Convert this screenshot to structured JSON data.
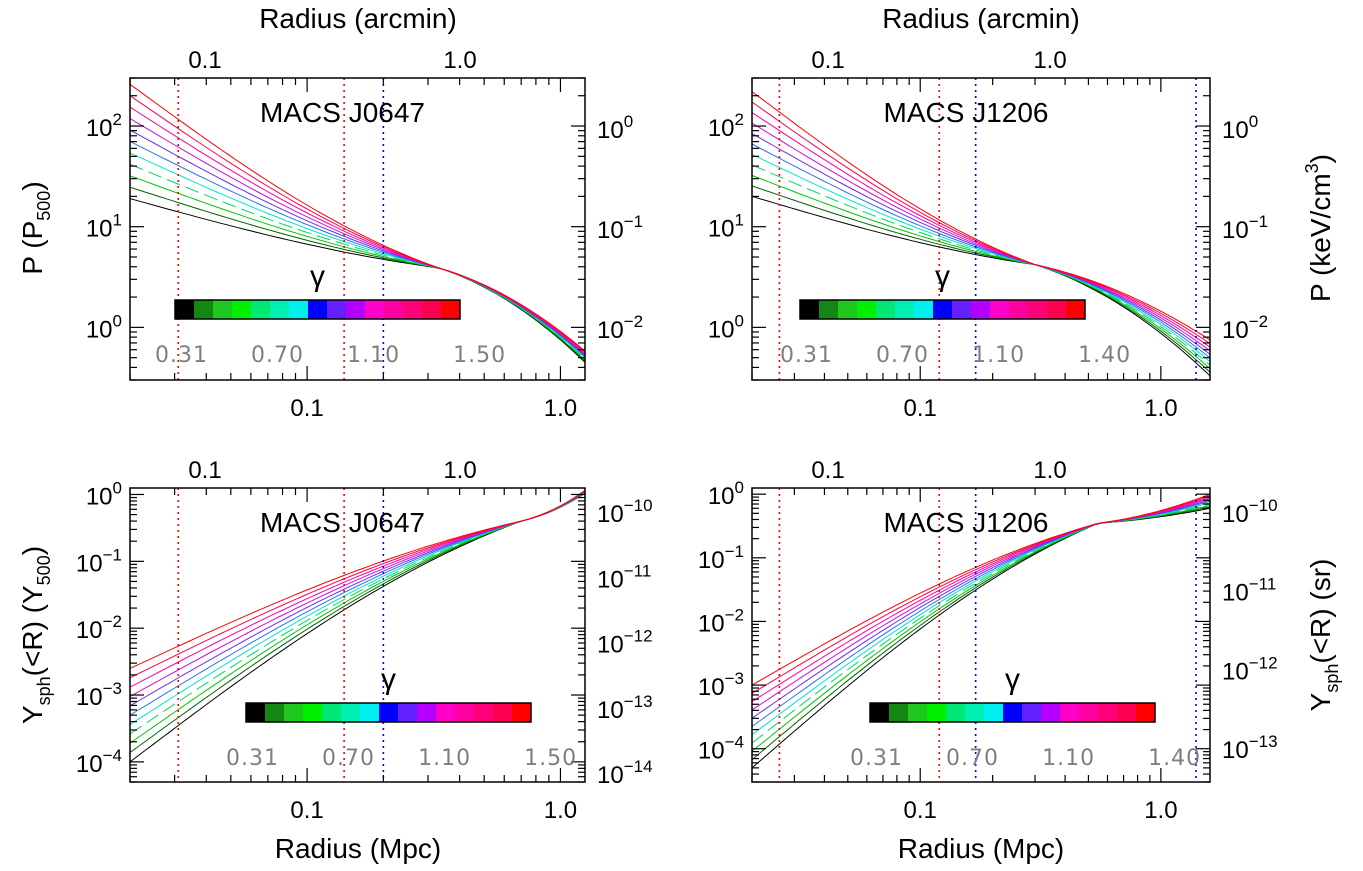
{
  "figure": {
    "top_axis_label": "Radius (arcmin)",
    "bottom_axis_label": "Radius (Mpc)",
    "pressure_left_label": "P (P500)",
    "pressure_right_label": "P (keV/cm3)",
    "ysph_left_label": "Ysph(<R) (Y500)",
    "ysph_right_label": "Ysph(<R) (sr)",
    "colorbar_symbol": "γ",
    "colorbar_colors": [
      "#000000",
      "#138613",
      "#1fc81f",
      "#00f000",
      "#00e873",
      "#00f0b4",
      "#00f0f0",
      "#0000ff",
      "#6420ff",
      "#b400ff",
      "#ff00c8",
      "#ff00a0",
      "#ff0078",
      "#ff0050",
      "#ff0000"
    ]
  },
  "chart_data": [
    {
      "type": "line",
      "title": "MACS J0647",
      "panel": "pressure",
      "xlim": [
        0.02,
        1.25
      ],
      "x_top_ticks": [
        "0.1",
        "1.0"
      ],
      "x_bottom_ticks": [
        "0.1",
        "1.0"
      ],
      "y_left_ticks": [
        "10^0",
        "10^1",
        "10^2"
      ],
      "y_right_ticks": [
        "10^-2",
        "10^-1",
        "10^0"
      ],
      "ylim": [
        0.3,
        300
      ],
      "gamma_labels": [
        "0.31",
        "0.70",
        "1.10",
        "1.50"
      ],
      "gamma_min": 0.31,
      "gamma_max": 1.5,
      "n_curves": 11,
      "pivot_x": 0.33,
      "pivot_y": 3.9,
      "y_at_left_min": 19,
      "y_at_left_max": 260,
      "y_at_right_min": 0.45,
      "y_at_right_max": 0.58,
      "vlines": [
        {
          "x": 0.031,
          "color": "red"
        },
        {
          "x": 0.14,
          "color": "red"
        },
        {
          "x": 0.2,
          "color": "blue"
        }
      ]
    },
    {
      "type": "line",
      "title": "MACS J1206",
      "panel": "pressure",
      "xlim": [
        0.02,
        1.6
      ],
      "x_top_ticks": [
        "0.1",
        "1.0"
      ],
      "x_bottom_ticks": [
        "0.1",
        "1.0"
      ],
      "y_left_ticks": [
        "10^0",
        "10^1",
        "10^2"
      ],
      "y_right_ticks": [
        "10^-2",
        "10^-1",
        "10^0"
      ],
      "ylim": [
        0.3,
        300
      ],
      "gamma_labels": [
        "0.31",
        "0.70",
        "1.10",
        "1.40"
      ],
      "gamma_min": 0.31,
      "gamma_max": 1.4,
      "n_curves": 11,
      "pivot_x": 0.3,
      "pivot_y": 4.2,
      "y_at_left_min": 20,
      "y_at_left_max": 220,
      "y_at_right_min": 0.33,
      "y_at_right_max": 0.75,
      "vlines": [
        {
          "x": 0.026,
          "color": "red"
        },
        {
          "x": 0.12,
          "color": "red"
        },
        {
          "x": 0.17,
          "color": "blue"
        },
        {
          "x": 1.4,
          "color": "blue"
        }
      ]
    },
    {
      "type": "line",
      "title": "MACS J0647",
      "panel": "ysph",
      "xlim": [
        0.02,
        1.25
      ],
      "x_top_ticks": [
        "0.1",
        "1.0"
      ],
      "x_bottom_ticks": [
        "0.1",
        "1.0"
      ],
      "y_left_ticks": [
        "10^-4",
        "10^-3",
        "10^-2",
        "10^-1",
        "10^0"
      ],
      "y_right_ticks": [
        "10^-14",
        "10^-13",
        "10^-12",
        "10^-11",
        "10^-10"
      ],
      "ylim": [
        5e-05,
        1.25
      ],
      "gamma_labels": [
        "0.31",
        "0.70",
        "1.10",
        "1.50"
      ],
      "gamma_min": 0.31,
      "gamma_max": 1.5,
      "n_curves": 11,
      "pivot_x": 0.7,
      "pivot_y": 0.4,
      "y_at_left_min": 0.0001,
      "y_at_left_max": 0.0025,
      "y_at_right_min": 1.05,
      "y_at_right_max": 1.15,
      "vlines": [
        {
          "x": 0.031,
          "color": "red"
        },
        {
          "x": 0.14,
          "color": "red"
        },
        {
          "x": 0.2,
          "color": "blue"
        }
      ]
    },
    {
      "type": "line",
      "title": "MACS J1206",
      "panel": "ysph",
      "xlim": [
        0.02,
        1.6
      ],
      "x_top_ticks": [
        "0.1",
        "1.0"
      ],
      "x_bottom_ticks": [
        "0.1",
        "1.0"
      ],
      "y_left_ticks": [
        "10^-4",
        "10^-3",
        "10^-2",
        "10^-1",
        "10^0"
      ],
      "y_right_ticks": [
        "10^-13",
        "10^-12",
        "10^-11",
        "10^-10"
      ],
      "ylim": [
        3e-05,
        1.25
      ],
      "gamma_labels": [
        "0.31",
        "0.70",
        "1.10",
        "1.40"
      ],
      "gamma_min": 0.31,
      "gamma_max": 1.4,
      "n_curves": 11,
      "pivot_x": 0.55,
      "pivot_y": 0.35,
      "y_at_left_min": 5e-05,
      "y_at_left_max": 0.001,
      "y_at_right_min": 0.6,
      "y_at_right_max": 1.0,
      "vlines": [
        {
          "x": 0.026,
          "color": "red"
        },
        {
          "x": 0.12,
          "color": "red"
        },
        {
          "x": 0.17,
          "color": "blue"
        },
        {
          "x": 1.4,
          "color": "blue"
        }
      ]
    }
  ]
}
